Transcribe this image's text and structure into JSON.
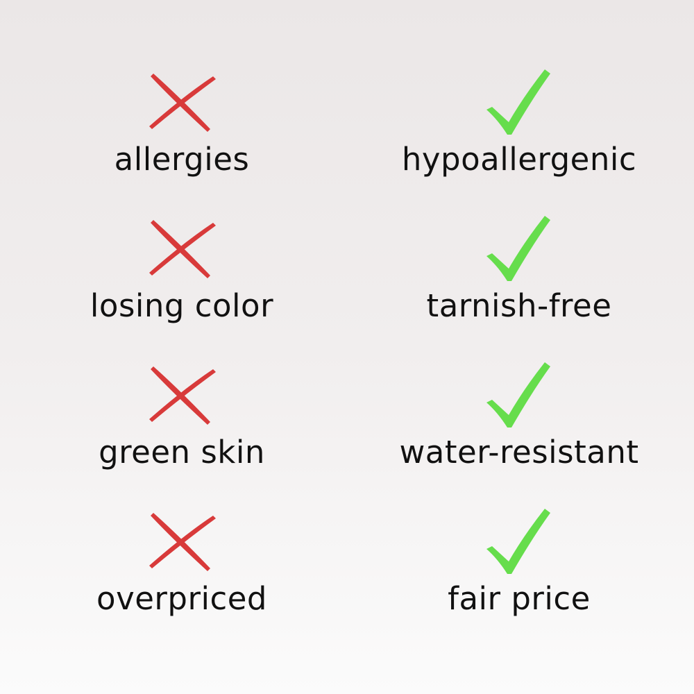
{
  "colors": {
    "cross": "#d83a3a",
    "check": "#66dd4c",
    "text": "#111111"
  },
  "rows": [
    {
      "problem": "allergies",
      "solution": "hypoallergenic"
    },
    {
      "problem": "losing color",
      "solution": "tarnish-free"
    },
    {
      "problem": "green skin",
      "solution": "water-resistant"
    },
    {
      "problem": "overpriced",
      "solution": "fair price"
    }
  ],
  "icons": {
    "problem": "cross-icon",
    "solution": "check-icon"
  }
}
